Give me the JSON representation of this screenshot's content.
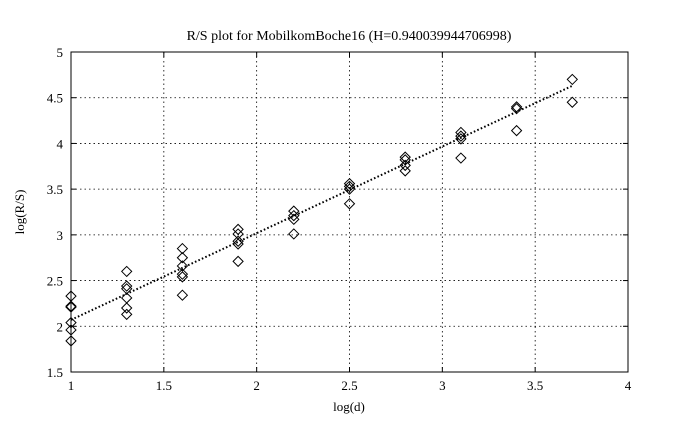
{
  "chart_data": {
    "type": "scatter",
    "title": "R/S plot for MobilkomBoche16 (H=0.940039944706998)",
    "xlabel": "log(d)",
    "ylabel": "log(R/S)",
    "xlim": [
      1,
      4
    ],
    "ylim": [
      1.5,
      5
    ],
    "grid": true,
    "x_ticks": [
      "1",
      "1.5",
      "2",
      "2.5",
      "3",
      "3.5",
      "4"
    ],
    "y_ticks": [
      "1.5",
      "2",
      "2.5",
      "3",
      "3.5",
      "4",
      "4.5",
      "5"
    ],
    "marker": "diamond",
    "points": [
      {
        "x": 1.0,
        "y": 2.33
      },
      {
        "x": 1.0,
        "y": 2.22
      },
      {
        "x": 1.0,
        "y": 2.21
      },
      {
        "x": 1.0,
        "y": 2.04
      },
      {
        "x": 1.0,
        "y": 1.96
      },
      {
        "x": 1.0,
        "y": 1.84
      },
      {
        "x": 1.3,
        "y": 2.6
      },
      {
        "x": 1.3,
        "y": 2.44
      },
      {
        "x": 1.3,
        "y": 2.41
      },
      {
        "x": 1.3,
        "y": 2.31
      },
      {
        "x": 1.3,
        "y": 2.2
      },
      {
        "x": 1.3,
        "y": 2.13
      },
      {
        "x": 1.6,
        "y": 2.85
      },
      {
        "x": 1.6,
        "y": 2.75
      },
      {
        "x": 1.6,
        "y": 2.66
      },
      {
        "x": 1.6,
        "y": 2.57
      },
      {
        "x": 1.6,
        "y": 2.54
      },
      {
        "x": 1.6,
        "y": 2.34
      },
      {
        "x": 1.9,
        "y": 3.06
      },
      {
        "x": 1.9,
        "y": 3.01
      },
      {
        "x": 1.9,
        "y": 2.93
      },
      {
        "x": 1.9,
        "y": 2.9
      },
      {
        "x": 1.9,
        "y": 2.71
      },
      {
        "x": 2.2,
        "y": 3.26
      },
      {
        "x": 2.2,
        "y": 3.21
      },
      {
        "x": 2.2,
        "y": 3.17
      },
      {
        "x": 2.2,
        "y": 3.01
      },
      {
        "x": 2.5,
        "y": 3.56
      },
      {
        "x": 2.5,
        "y": 3.53
      },
      {
        "x": 2.5,
        "y": 3.5
      },
      {
        "x": 2.5,
        "y": 3.34
      },
      {
        "x": 2.8,
        "y": 3.85
      },
      {
        "x": 2.8,
        "y": 3.82
      },
      {
        "x": 2.8,
        "y": 3.76
      },
      {
        "x": 2.8,
        "y": 3.7
      },
      {
        "x": 3.1,
        "y": 4.12
      },
      {
        "x": 3.1,
        "y": 4.08
      },
      {
        "x": 3.1,
        "y": 4.05
      },
      {
        "x": 3.1,
        "y": 3.84
      },
      {
        "x": 3.4,
        "y": 4.4
      },
      {
        "x": 3.4,
        "y": 4.38
      },
      {
        "x": 3.4,
        "y": 4.14
      },
      {
        "x": 3.7,
        "y": 4.7
      },
      {
        "x": 3.7,
        "y": 4.45
      }
    ],
    "fit_line": {
      "style": "dotted",
      "x": [
        1.0,
        3.7
      ],
      "y": [
        2.07,
        4.63
      ]
    }
  }
}
